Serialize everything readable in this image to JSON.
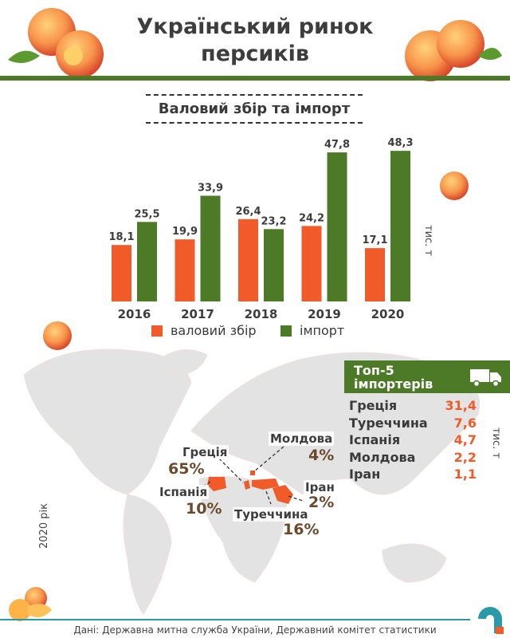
{
  "title_line1": "Український ринок",
  "title_line2": "персиків",
  "subtitle": "Валовий збір та імпорт",
  "colors": {
    "harvest": "#f15a29",
    "import": "#4d7a27",
    "accent": "#2a9aa8"
  },
  "chart_data": {
    "type": "bar",
    "categories": [
      "2016",
      "2017",
      "2018",
      "2019",
      "2020"
    ],
    "series": [
      {
        "name": "валовий збір",
        "values": [
          18.1,
          19.9,
          26.4,
          24.2,
          17.1
        ],
        "labels": [
          "18,1",
          "19,9",
          "26,4",
          "24,2",
          "17,1"
        ]
      },
      {
        "name": "імпорт",
        "values": [
          25.5,
          33.9,
          23.2,
          47.8,
          48.3
        ],
        "labels": [
          "25,5",
          "33,9",
          "23,2",
          "47,8",
          "48,3"
        ]
      }
    ],
    "unit": "тис. т",
    "ylim": [
      0,
      50
    ],
    "grid": false,
    "legend": "bottom"
  },
  "importers": {
    "title_line1": "Топ-5",
    "title_line2": "імпортерів",
    "icon": "truck-icon",
    "unit": "тис. т",
    "rows": [
      {
        "country": "Греція",
        "value": "31,4"
      },
      {
        "country": "Туреччина",
        "value": "7,6"
      },
      {
        "country": "Іспанія",
        "value": "4,7"
      },
      {
        "country": "Молдова",
        "value": "2,2"
      },
      {
        "country": "Іран",
        "value": "1,1"
      }
    ]
  },
  "map": {
    "year_label": "2020 рік",
    "shares": [
      {
        "country": "Греція",
        "pct": "65%"
      },
      {
        "country": "Іспанія",
        "pct": "10%"
      },
      {
        "country": "Молдова",
        "pct": "4%"
      },
      {
        "country": "Іран",
        "pct": "2%"
      },
      {
        "country": "Туреччина",
        "pct": "16%"
      }
    ]
  },
  "source": "Дані: Державна митна служба України, Державний комітет статистики"
}
